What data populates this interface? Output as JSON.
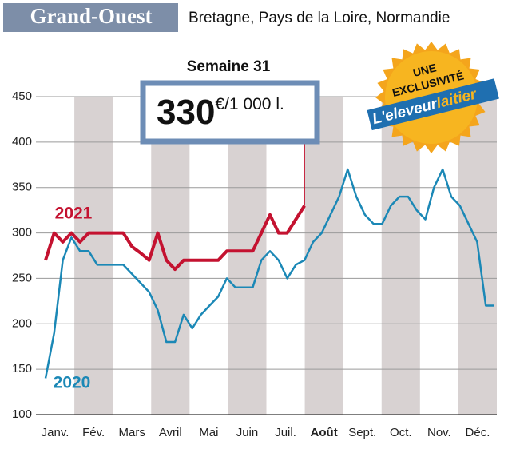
{
  "header": {
    "title": "Grand-Ouest",
    "subtitle": "Bretagne, Pays de la Loire, Normandie"
  },
  "badge": {
    "line1": "UNE",
    "line2": "EXCLUSIVITÉ",
    "brand1": "L'eleveur",
    "brand2": "laitier"
  },
  "chart_data": {
    "type": "line",
    "title": "Semaine 31",
    "callout": {
      "value": 330,
      "unit": "€/1 000 l."
    },
    "x": [
      1,
      2,
      3,
      4,
      5,
      6,
      7,
      8,
      9,
      10,
      11,
      12,
      13,
      14,
      15,
      16,
      17,
      18,
      19,
      20,
      21,
      22,
      23,
      24,
      25,
      26,
      27,
      28,
      29,
      30,
      31,
      32,
      33,
      34,
      35,
      36,
      37,
      38,
      39,
      40,
      41,
      42,
      43,
      44,
      45,
      46,
      47,
      48,
      49,
      50,
      51,
      52,
      53
    ],
    "xlim": [
      1,
      53
    ],
    "month_labels": [
      "Janv.",
      "Fév.",
      "Mars",
      "Avril",
      "Mai",
      "Juin",
      "Juil.",
      "Août",
      "Sept.",
      "Oct.",
      "Nov.",
      "Déc."
    ],
    "highlight_month": 7,
    "ylim": [
      100,
      450
    ],
    "yticks": [
      100,
      150,
      200,
      250,
      300,
      350,
      400,
      450
    ],
    "grid": true,
    "series": [
      {
        "name": "2020",
        "color": "#1b88b6",
        "values": [
          140,
          190,
          270,
          295,
          280,
          280,
          265,
          265,
          265,
          265,
          255,
          245,
          235,
          215,
          180,
          180,
          210,
          195,
          210,
          220,
          230,
          250,
          240,
          240,
          240,
          270,
          280,
          270,
          250,
          265,
          270,
          290,
          300,
          320,
          340,
          370,
          340,
          320,
          310,
          310,
          330,
          340,
          340,
          325,
          315,
          350,
          370,
          340,
          330,
          310,
          290,
          220,
          220
        ]
      },
      {
        "name": "2021",
        "color": "#c41230",
        "values": [
          270,
          300,
          290,
          300,
          290,
          300,
          300,
          300,
          300,
          300,
          285,
          278,
          270,
          300,
          270,
          260,
          270,
          270,
          270,
          270,
          270,
          280,
          280,
          280,
          280,
          300,
          320,
          300,
          300,
          315,
          330,
          null,
          null,
          null,
          null,
          null,
          null,
          null,
          null,
          null,
          null,
          null,
          null,
          null,
          null,
          null,
          null,
          null,
          null,
          null,
          null,
          null,
          null
        ]
      }
    ]
  }
}
